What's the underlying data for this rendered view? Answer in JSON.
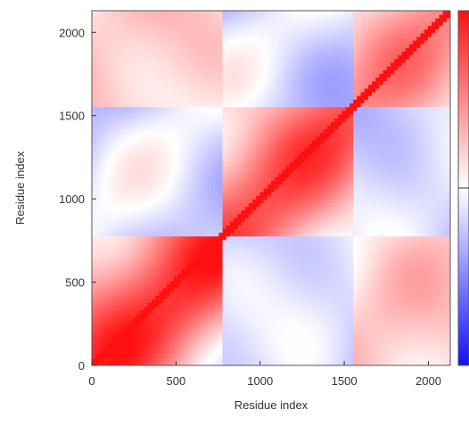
{
  "chart_data": {
    "type": "heatmap",
    "title": "",
    "xlabel": "Residue index",
    "ylabel": "Residue index",
    "xlim": [
      0,
      2130
    ],
    "ylim": [
      0,
      2130
    ],
    "x_ticks": [
      0,
      500,
      1000,
      1500,
      2000
    ],
    "y_ticks": [
      0,
      500,
      1000,
      1500,
      2000
    ],
    "colormap": {
      "low": "#1010ff",
      "mid": "#ffffff",
      "high": "#ff1010",
      "range": [
        -1,
        1
      ]
    },
    "colorbar": {
      "position": "right",
      "tick_labels_visible": false
    },
    "symmetric": true,
    "description_blocks": [
      {
        "x": [
          0,
          780
        ],
        "y": [
          0,
          780
        ],
        "value": 0.9
      },
      {
        "x": [
          780,
          1550
        ],
        "y": [
          780,
          1550
        ],
        "value": 0.75
      },
      {
        "x": [
          1560,
          2130
        ],
        "y": [
          1560,
          2130
        ],
        "value": 0.5
      },
      {
        "x": [
          0,
          780
        ],
        "y": [
          780,
          1550
        ],
        "value": -0.3
      },
      {
        "x": [
          0,
          780
        ],
        "y": [
          1550,
          2130
        ],
        "value": 0.3
      },
      {
        "x": [
          780,
          1550
        ],
        "y": [
          1550,
          2130
        ],
        "value": -0.35
      },
      {
        "x": [
          1560,
          2130
        ],
        "y": [
          0,
          1550
        ],
        "value": -0.15
      }
    ]
  }
}
